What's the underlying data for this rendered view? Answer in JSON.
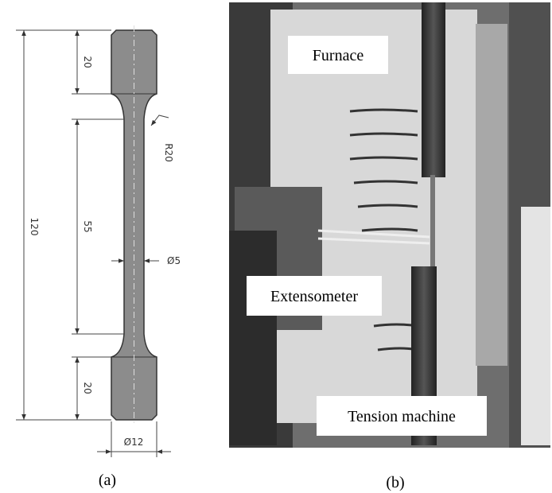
{
  "panel_a": {
    "label": "(a)",
    "dimensions": {
      "top_grip": "20",
      "gauge": "55",
      "total": "120",
      "bottom_grip": "20",
      "radius": "R20",
      "gauge_diameter": "Ø5",
      "grip_diameter": "Ø12"
    }
  },
  "panel_b": {
    "label": "(b)",
    "callouts": [
      "Furnace",
      "Extensometer",
      "Tension machine"
    ]
  }
}
